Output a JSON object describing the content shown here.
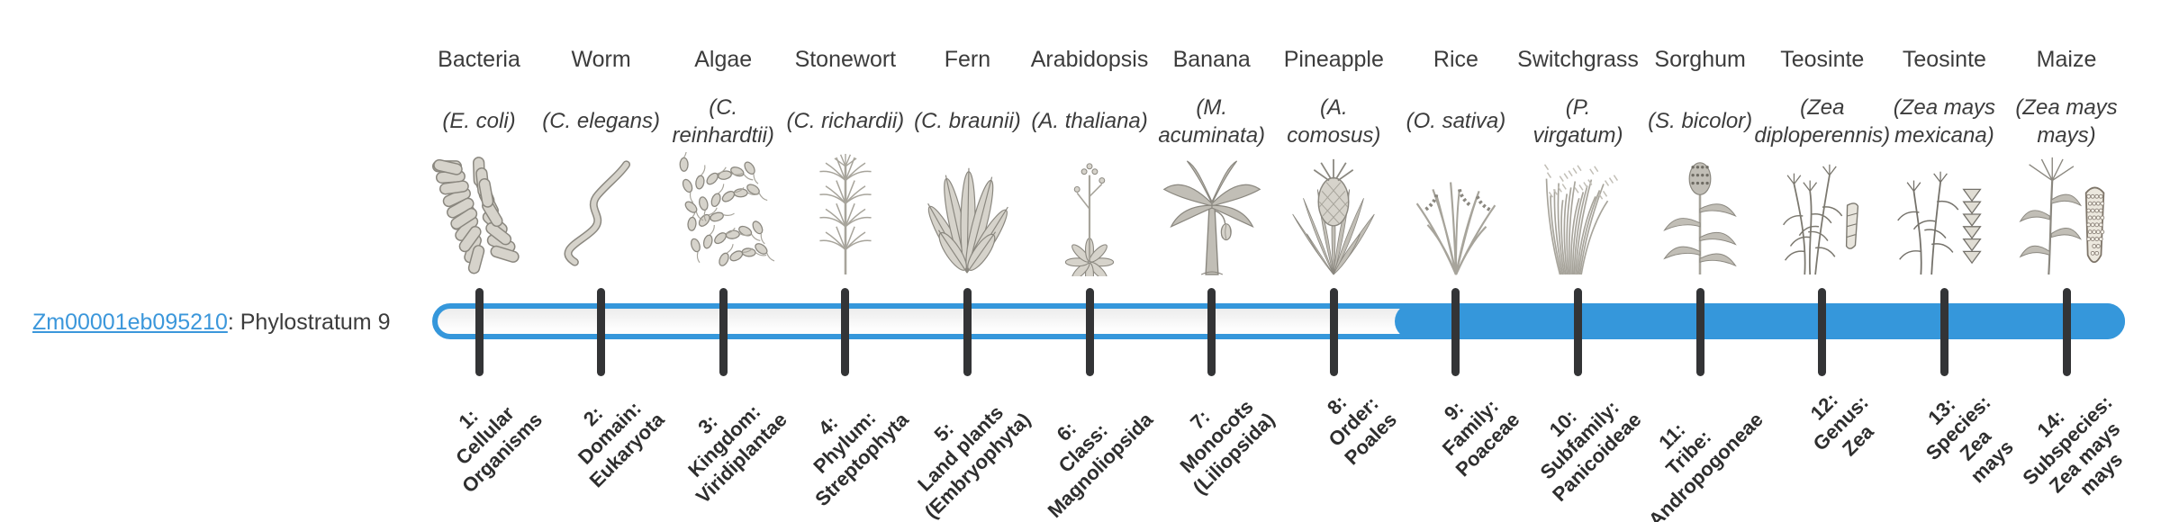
{
  "gene": {
    "id": "Zm00001eb095210",
    "suffix": ": Phylostratum 9",
    "phylostratum": 9,
    "link_color": "#3b97db"
  },
  "timeline": {
    "bar_color": "#3597db",
    "tick_color": "#333436",
    "track_background": "#f2f2f2",
    "filled_from_stage": 9,
    "total_stages": 14
  },
  "organisms": [
    {
      "name": "Bacteria",
      "sci": "(E. coli)",
      "icon": "bacteria-icon"
    },
    {
      "name": "Worm",
      "sci": "(C. elegans)",
      "icon": "worm-icon"
    },
    {
      "name": "Algae",
      "sci": "(C.\nreinhardtii)",
      "icon": "algae-icon"
    },
    {
      "name": "Stonewort",
      "sci": "(C. richardii)",
      "icon": "stonewort-icon"
    },
    {
      "name": "Fern",
      "sci": "(C. braunii)",
      "icon": "fern-icon"
    },
    {
      "name": "Arabidopsis",
      "sci": "(A. thaliana)",
      "icon": "arabidopsis-icon"
    },
    {
      "name": "Banana",
      "sci": "(M.\nacuminata)",
      "icon": "banana-icon"
    },
    {
      "name": "Pineapple",
      "sci": "(A.\ncomosus)",
      "icon": "pineapple-icon"
    },
    {
      "name": "Rice",
      "sci": "(O. sativa)",
      "icon": "rice-icon"
    },
    {
      "name": "Switchgrass",
      "sci": "(P.\nvirgatum)",
      "icon": "switchgrass-icon"
    },
    {
      "name": "Sorghum",
      "sci": "(S. bicolor)",
      "icon": "sorghum-icon"
    },
    {
      "name": "Teosinte",
      "sci": "(Zea\ndiploperennis)",
      "icon": "teosinte-diploperennis-icon"
    },
    {
      "name": "Teosinte",
      "sci": "(Zea mays\nmexicana)",
      "icon": "teosinte-mexicana-icon"
    },
    {
      "name": "Maize",
      "sci": "(Zea mays\nmays)",
      "icon": "maize-icon"
    }
  ],
  "stages": [
    "1:\nCellular\nOrganisms",
    "2:\nDomain:\nEukaryota",
    "3:\nKingdom:\nViridiplantae",
    "4:\nPhylum:\nStreptophyta",
    "5:\nLand plants\n(Embryophyta)",
    "6:\nClass:\nMagnoliopsida",
    "7:\nMonocots\n(Liliopsida)",
    "8:\nOrder:\nPoales",
    "9:\nFamily:\nPoaceae",
    "10:\nSubfamily:\nPanicoideae",
    "11:\nTribe:\nAndropogoneae",
    "12:\nGenus:\nZea",
    "13:\nSpecies:\nZea\nmays",
    "14:\nSubspecies:\nZea mays\nmays"
  ]
}
